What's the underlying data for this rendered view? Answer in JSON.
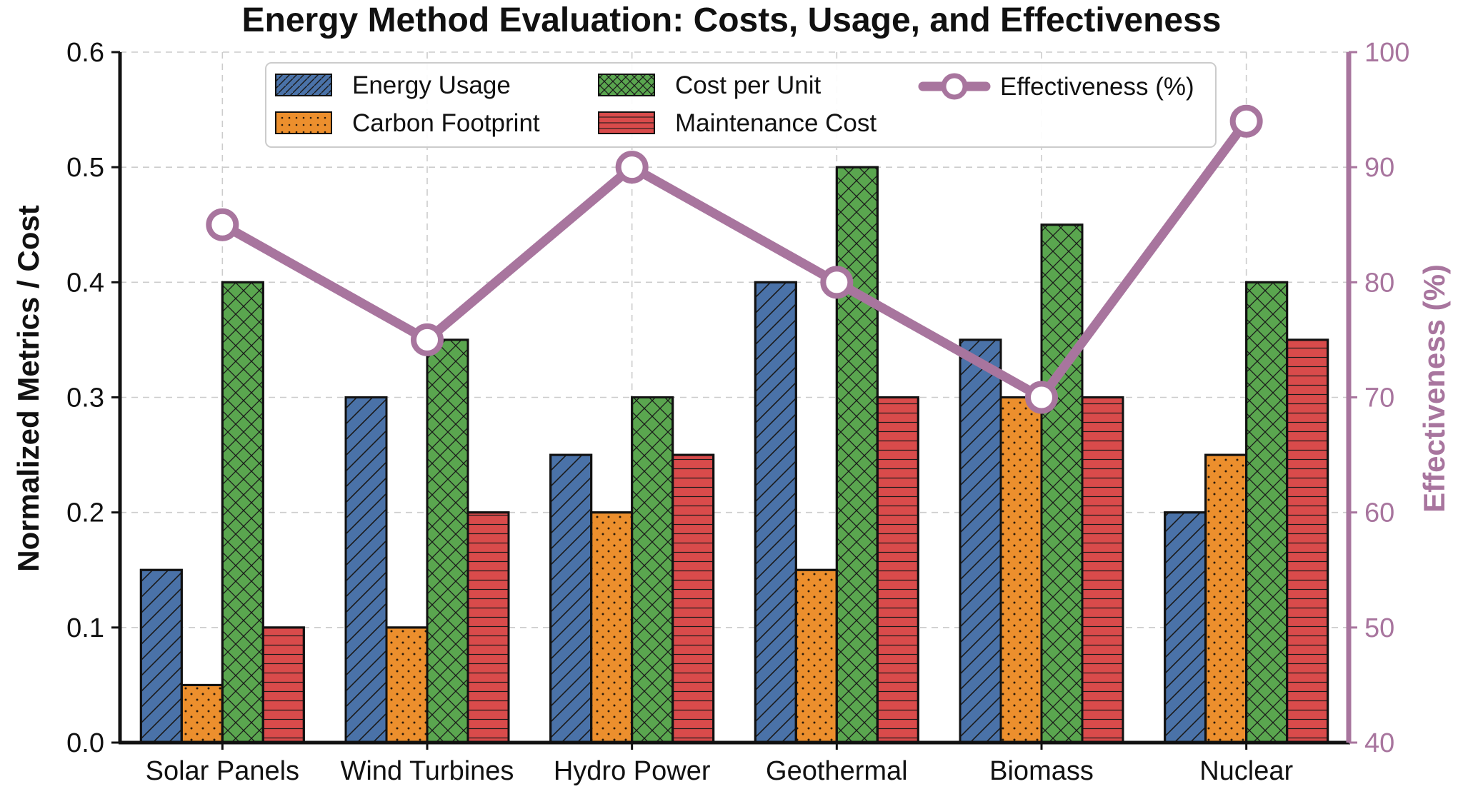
{
  "chart_data": {
    "type": "bar",
    "title": "Energy Method Evaluation: Costs, Usage, and Effectiveness",
    "xlabel": "",
    "ylabel": "Normalized Metrics / Cost",
    "y2label": "Effectiveness (%)",
    "ylim": [
      0,
      0.6
    ],
    "y2lim": [
      40,
      100
    ],
    "yticks": [
      "0.0",
      "0.1",
      "0.2",
      "0.3",
      "0.4",
      "0.5",
      "0.6"
    ],
    "y2ticks": [
      "40",
      "50",
      "60",
      "70",
      "80",
      "90",
      "100"
    ],
    "categories": [
      "Solar Panels",
      "Wind Turbines",
      "Hydro Power",
      "Geothermal",
      "Biomass",
      "Nuclear"
    ],
    "series": [
      {
        "name": "Energy Usage",
        "color": "#4a72a8",
        "pattern": "diagonal-hatch",
        "values": [
          0.15,
          0.3,
          0.25,
          0.4,
          0.35,
          0.2
        ]
      },
      {
        "name": "Carbon Footprint",
        "color": "#ec8f2d",
        "pattern": "dots",
        "values": [
          0.05,
          0.1,
          0.2,
          0.15,
          0.3,
          0.25
        ]
      },
      {
        "name": "Cost per Unit",
        "color": "#5aa64f",
        "pattern": "cross-hatch",
        "values": [
          0.4,
          0.35,
          0.3,
          0.5,
          0.45,
          0.4
        ]
      },
      {
        "name": "Maintenance Cost",
        "color": "#d94b4b",
        "pattern": "horizontal-lines",
        "values": [
          0.1,
          0.2,
          0.25,
          0.3,
          0.3,
          0.35
        ]
      }
    ],
    "line": {
      "name": "Effectiveness (%)",
      "color": "#a8759e",
      "axis": "right",
      "values": [
        85,
        75,
        90,
        80,
        70,
        94
      ]
    },
    "grid": true,
    "legend_position": "top"
  }
}
